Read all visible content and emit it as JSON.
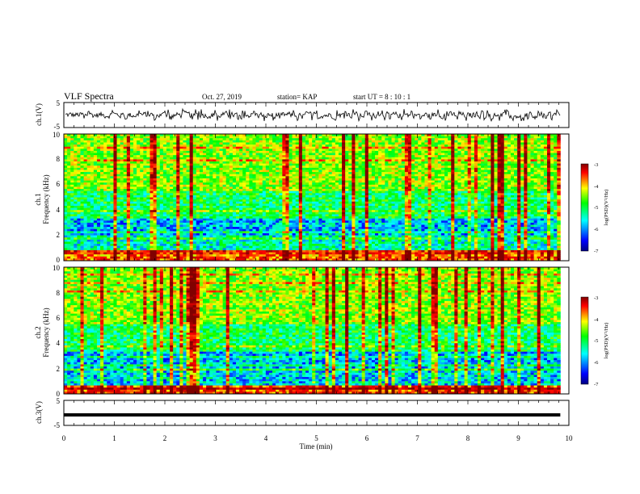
{
  "header": {
    "title": "VLF Spectra",
    "date": "Oct. 27, 2019",
    "station": "station= KAP",
    "start": "start  UT =   8  : 10 : 1"
  },
  "chart_data": {
    "type": "heatmap",
    "x": {
      "label": "Time  (min)",
      "range": [
        0,
        10
      ],
      "ticks": [
        0,
        1,
        2,
        3,
        4,
        5,
        6,
        7,
        8,
        9,
        10
      ],
      "data_end": 9.83
    },
    "panels": [
      {
        "id": "ch1-waveform",
        "type": "line",
        "ylabel": "ch.1(V)",
        "ylim": [
          -5,
          5
        ],
        "yticks": [
          "5",
          "-5"
        ],
        "trace": "noisy waveform, mostly within -1..+1 V with spikes to about ±2 V"
      },
      {
        "id": "ch1-spectrogram",
        "type": "heatmap",
        "ylabel": "ch.1\nFrequency  (kHz)",
        "ylim": [
          0,
          10
        ],
        "yticks": [
          "0",
          "2",
          "4",
          "6",
          "8",
          "10"
        ],
        "colorbar": {
          "label": "log(PSD)(V²/Hz)",
          "range": [
            -7,
            -3
          ],
          "ticks": [
            "-3",
            "-4",
            "-5",
            "-6",
            "-7"
          ]
        }
      },
      {
        "id": "ch2-spectrogram",
        "type": "heatmap",
        "ylabel": "ch.2\nFrequency  (kHz)",
        "ylim": [
          0,
          10
        ],
        "yticks": [
          "0",
          "2",
          "4",
          "6",
          "8",
          "10"
        ],
        "colorbar": {
          "label": "log(PSD)(V²/Hz)",
          "range": [
            -7,
            -3
          ],
          "ticks": [
            "-3",
            "-4",
            "-5",
            "-6",
            "-7"
          ]
        }
      },
      {
        "id": "ch3-waveform",
        "type": "line",
        "ylabel": "ch.3(V)",
        "ylim": [
          -5,
          5
        ],
        "yticks": [
          "5",
          "-5"
        ],
        "trace_value": -0.8
      }
    ],
    "colormap": [
      "#000080",
      "#0000ff",
      "#00ffff",
      "#00ff00",
      "#ffff00",
      "#ff0000",
      "#800000"
    ]
  }
}
